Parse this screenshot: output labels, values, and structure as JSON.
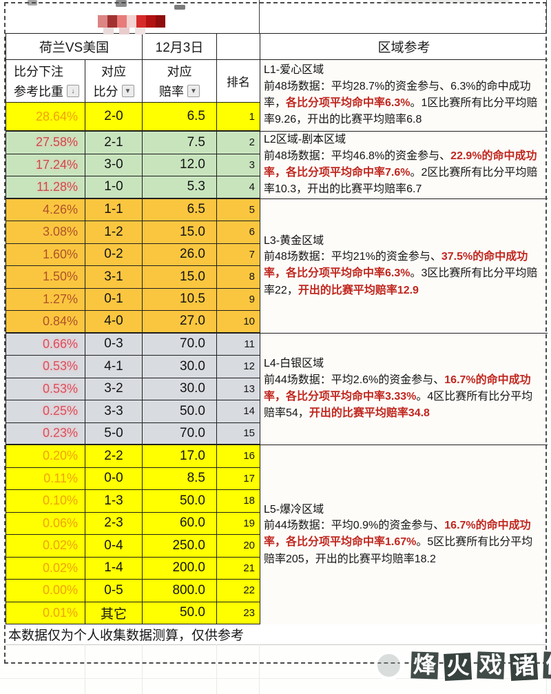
{
  "header": {
    "match": "荷兰VS美国",
    "date": "12月3日",
    "region": "区域参考"
  },
  "columns": [
    {
      "line1": "比分下注",
      "line2": "参考比重",
      "filter": "sort"
    },
    {
      "line1": "对应",
      "line2": "比分",
      "filter": "dropdown"
    },
    {
      "line1": "对应",
      "line2": "赔率",
      "filter": "dropdown"
    },
    {
      "line1": "排名",
      "line2": "",
      "filter": "none"
    }
  ],
  "icons": {
    "sort_glyph": "↓",
    "filter_glyph": "▼"
  },
  "table": {
    "rows": [
      {
        "percent": "28.64%",
        "score": "2-0",
        "odds": "6.5",
        "rank": "1",
        "zone": 1
      },
      {
        "percent": "27.58%",
        "score": "2-1",
        "odds": "7.5",
        "rank": "2",
        "zone": 2
      },
      {
        "percent": "17.24%",
        "score": "3-0",
        "odds": "12.0",
        "rank": "3",
        "zone": 2
      },
      {
        "percent": "11.28%",
        "score": "1-0",
        "odds": "5.3",
        "rank": "4",
        "zone": 2
      },
      {
        "percent": "4.26%",
        "score": "1-1",
        "odds": "6.5",
        "rank": "5",
        "zone": 3
      },
      {
        "percent": "3.08%",
        "score": "1-2",
        "odds": "15.0",
        "rank": "6",
        "zone": 3
      },
      {
        "percent": "1.60%",
        "score": "0-2",
        "odds": "26.0",
        "rank": "7",
        "zone": 3
      },
      {
        "percent": "1.50%",
        "score": "3-1",
        "odds": "15.0",
        "rank": "8",
        "zone": 3
      },
      {
        "percent": "1.27%",
        "score": "0-1",
        "odds": "10.5",
        "rank": "9",
        "zone": 3
      },
      {
        "percent": "0.84%",
        "score": "4-0",
        "odds": "27.0",
        "rank": "10",
        "zone": 3
      },
      {
        "percent": "0.66%",
        "score": "0-3",
        "odds": "70.0",
        "rank": "11",
        "zone": 4
      },
      {
        "percent": "0.53%",
        "score": "4-1",
        "odds": "30.0",
        "rank": "12",
        "zone": 4
      },
      {
        "percent": "0.53%",
        "score": "3-2",
        "odds": "30.0",
        "rank": "13",
        "zone": 4
      },
      {
        "percent": "0.25%",
        "score": "3-3",
        "odds": "50.0",
        "rank": "14",
        "zone": 4
      },
      {
        "percent": "0.23%",
        "score": "5-0",
        "odds": "70.0",
        "rank": "15",
        "zone": 4
      },
      {
        "percent": "0.20%",
        "score": "2-2",
        "odds": "17.0",
        "rank": "16",
        "zone": 5
      },
      {
        "percent": "0.11%",
        "score": "0-0",
        "odds": "8.5",
        "rank": "17",
        "zone": 5
      },
      {
        "percent": "0.10%",
        "score": "1-3",
        "odds": "50.0",
        "rank": "18",
        "zone": 5
      },
      {
        "percent": "0.06%",
        "score": "2-3",
        "odds": "60.0",
        "rank": "19",
        "zone": 5
      },
      {
        "percent": "0.02%",
        "score": "0-4",
        "odds": "250.0",
        "rank": "20",
        "zone": 5
      },
      {
        "percent": "0.02%",
        "score": "1-4",
        "odds": "200.0",
        "rank": "21",
        "zone": 5
      },
      {
        "percent": "0.00%",
        "score": "0-5",
        "odds": "800.0",
        "rank": "22",
        "zone": 5
      },
      {
        "percent": "0.01%",
        "score": "其它",
        "odds": "50.0",
        "rank": "23",
        "zone": 5
      }
    ]
  },
  "zones": [
    {
      "id": "L1",
      "title": "L1-爱心区域",
      "segments": [
        {
          "text": "前48场数据：平均28.7%的资金参与、6.3%的命中成功率，",
          "red": false
        },
        {
          "text": "各比分项平均命中率6.3%",
          "red": true
        },
        {
          "text": "。1区比赛所有比分平均赔率9.26，开出的比赛平均赔率6.8",
          "red": false
        }
      ]
    },
    {
      "id": "L2",
      "title": "L2区域-剧本区域",
      "segments": [
        {
          "text": "前48场数据：平均46.8%的资金参与、",
          "red": false
        },
        {
          "text": "22.9%的命中成功率，各比分项平均命中率7.6%",
          "red": true
        },
        {
          "text": "。2区比赛所有比分平均赔率10.3，开出的比赛平均赔率6.7",
          "red": false
        }
      ]
    },
    {
      "id": "L3",
      "title": "L3-黄金区域",
      "segments": [
        {
          "text": "前48场数据：平均21%的资金参与、",
          "red": false
        },
        {
          "text": "37.5%的命中成功率，各比分项平均命中率6.3%",
          "red": true
        },
        {
          "text": "。3区比赛所有比分平均赔率22，",
          "red": false
        },
        {
          "text": "开出的比赛平均赔率12.9",
          "red": true
        }
      ]
    },
    {
      "id": "L4",
      "title": "L4-白银区域",
      "segments": [
        {
          "text": "前44场数据：平均2.6%的资金参与、",
          "red": false
        },
        {
          "text": "16.7%的命中成功率，各比分项平均命中率3.33%",
          "red": true
        },
        {
          "text": "。4区比赛所有比分平均赔率54，",
          "red": false
        },
        {
          "text": "开出的比赛平均赔率34.8",
          "red": true
        }
      ]
    },
    {
      "id": "L5",
      "title": "L5-爆冷区域",
      "segments": [
        {
          "text": "前44场数据：平均0.9%的资金参与、",
          "red": false
        },
        {
          "text": "16.7%的命中成功率，各比分项平均命中率1.67%",
          "red": true
        },
        {
          "text": "。5区比赛所有比分平均赔率205，开出的比赛平均赔率18.2",
          "red": false
        }
      ]
    }
  ],
  "footer": {
    "note": "本数据仅为个人收集数据测算，仅供参考"
  },
  "watermark": {
    "text": "烽火戏诸侯"
  },
  "censor": {
    "colors": [
      "#dd8484",
      "#a23232",
      "#e87a7a",
      "#f3d2d2",
      "#d62a2a",
      "#b31212",
      "#8f0d0d"
    ],
    "sub_colors": [
      "#e9dada",
      "#e9cccc",
      "#f0e3e3"
    ]
  },
  "colors": {
    "zone1_bg": "#ffff00",
    "zone2_bg": "#c8e4bd",
    "zone3_bg": "#fbc63f",
    "zone4_bg": "#d8dbe0",
    "zone5_bg": "#ffff00",
    "highlight_red": "#c0271f",
    "percent_orange": "#f0a30a",
    "border": "#1f1f1f"
  }
}
